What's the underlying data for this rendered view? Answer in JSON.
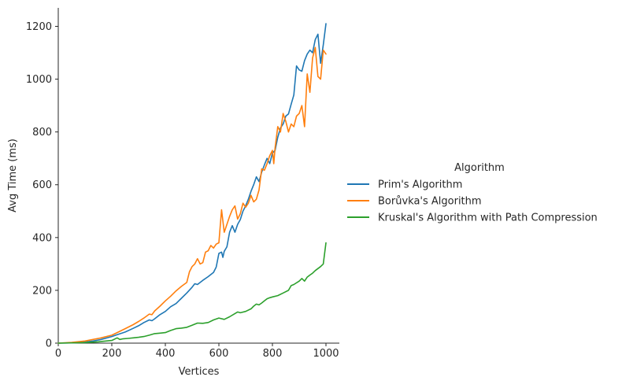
{
  "chart_data": {
    "type": "line",
    "xlabel": "Vertices",
    "ylabel": "Avg Time (ms)",
    "xlim": [
      0,
      1050
    ],
    "ylim": [
      0,
      1270
    ],
    "xticks": [
      0,
      200,
      400,
      600,
      800,
      1000
    ],
    "yticks": [
      0,
      200,
      400,
      600,
      800,
      1000,
      1200
    ],
    "grid": false,
    "legend": {
      "title": "Algorithm",
      "placement": "right-outside"
    },
    "series": [
      {
        "name": "Prim's Algorithm",
        "color": "#1f77b4",
        "points": [
          [
            0,
            0
          ],
          [
            50,
            1
          ],
          [
            100,
            4
          ],
          [
            130,
            8
          ],
          [
            160,
            14
          ],
          [
            200,
            25
          ],
          [
            220,
            32
          ],
          [
            250,
            42
          ],
          [
            280,
            56
          ],
          [
            300,
            66
          ],
          [
            320,
            78
          ],
          [
            340,
            88
          ],
          [
            350,
            85
          ],
          [
            360,
            92
          ],
          [
            380,
            108
          ],
          [
            400,
            120
          ],
          [
            420,
            138
          ],
          [
            440,
            150
          ],
          [
            460,
            170
          ],
          [
            480,
            190
          ],
          [
            500,
            212
          ],
          [
            510,
            225
          ],
          [
            520,
            222
          ],
          [
            540,
            238
          ],
          [
            560,
            252
          ],
          [
            580,
            268
          ],
          [
            590,
            288
          ],
          [
            600,
            340
          ],
          [
            610,
            345
          ],
          [
            615,
            325
          ],
          [
            620,
            348
          ],
          [
            630,
            365
          ],
          [
            640,
            420
          ],
          [
            650,
            445
          ],
          [
            660,
            420
          ],
          [
            670,
            450
          ],
          [
            680,
            468
          ],
          [
            690,
            500
          ],
          [
            700,
            520
          ],
          [
            710,
            545
          ],
          [
            720,
            575
          ],
          [
            730,
            600
          ],
          [
            740,
            630
          ],
          [
            750,
            612
          ],
          [
            760,
            648
          ],
          [
            770,
            675
          ],
          [
            780,
            700
          ],
          [
            790,
            680
          ],
          [
            800,
            720
          ],
          [
            810,
            730
          ],
          [
            820,
            780
          ],
          [
            830,
            815
          ],
          [
            840,
            830
          ],
          [
            850,
            860
          ],
          [
            860,
            868
          ],
          [
            870,
            905
          ],
          [
            880,
            940
          ],
          [
            890,
            1050
          ],
          [
            900,
            1035
          ],
          [
            910,
            1030
          ],
          [
            920,
            1070
          ],
          [
            930,
            1095
          ],
          [
            940,
            1110
          ],
          [
            950,
            1100
          ],
          [
            960,
            1150
          ],
          [
            970,
            1170
          ],
          [
            980,
            1060
          ],
          [
            990,
            1130
          ],
          [
            1000,
            1210
          ]
        ]
      },
      {
        "name": "Borůvka's Algorithm",
        "color": "#ff7f0e",
        "points": [
          [
            0,
            0
          ],
          [
            50,
            3
          ],
          [
            100,
            8
          ],
          [
            130,
            14
          ],
          [
            160,
            20
          ],
          [
            200,
            30
          ],
          [
            220,
            40
          ],
          [
            250,
            55
          ],
          [
            280,
            70
          ],
          [
            300,
            82
          ],
          [
            320,
            95
          ],
          [
            340,
            110
          ],
          [
            350,
            108
          ],
          [
            360,
            122
          ],
          [
            380,
            140
          ],
          [
            400,
            160
          ],
          [
            420,
            178
          ],
          [
            440,
            198
          ],
          [
            460,
            215
          ],
          [
            480,
            230
          ],
          [
            490,
            270
          ],
          [
            500,
            290
          ],
          [
            510,
            300
          ],
          [
            520,
            320
          ],
          [
            530,
            300
          ],
          [
            540,
            305
          ],
          [
            550,
            345
          ],
          [
            560,
            350
          ],
          [
            570,
            370
          ],
          [
            580,
            360
          ],
          [
            590,
            375
          ],
          [
            600,
            380
          ],
          [
            610,
            505
          ],
          [
            620,
            420
          ],
          [
            630,
            450
          ],
          [
            640,
            480
          ],
          [
            650,
            505
          ],
          [
            660,
            520
          ],
          [
            670,
            470
          ],
          [
            680,
            490
          ],
          [
            690,
            530
          ],
          [
            700,
            515
          ],
          [
            710,
            530
          ],
          [
            720,
            560
          ],
          [
            730,
            535
          ],
          [
            740,
            545
          ],
          [
            750,
            580
          ],
          [
            760,
            660
          ],
          [
            770,
            655
          ],
          [
            780,
            680
          ],
          [
            790,
            710
          ],
          [
            800,
            730
          ],
          [
            805,
            680
          ],
          [
            810,
            740
          ],
          [
            820,
            820
          ],
          [
            830,
            800
          ],
          [
            840,
            870
          ],
          [
            850,
            840
          ],
          [
            860,
            800
          ],
          [
            870,
            830
          ],
          [
            880,
            820
          ],
          [
            890,
            860
          ],
          [
            900,
            870
          ],
          [
            910,
            900
          ],
          [
            920,
            820
          ],
          [
            930,
            1020
          ],
          [
            940,
            950
          ],
          [
            950,
            1080
          ],
          [
            960,
            1120
          ],
          [
            970,
            1010
          ],
          [
            980,
            1000
          ],
          [
            990,
            1110
          ],
          [
            1000,
            1095
          ]
        ]
      },
      {
        "name": "Kruskal's Algorithm with Path Compression",
        "color": "#2ca02c",
        "points": [
          [
            0,
            0
          ],
          [
            100,
            2
          ],
          [
            150,
            5
          ],
          [
            200,
            10
          ],
          [
            220,
            20
          ],
          [
            230,
            14
          ],
          [
            240,
            16
          ],
          [
            260,
            18
          ],
          [
            280,
            20
          ],
          [
            300,
            22
          ],
          [
            320,
            25
          ],
          [
            340,
            30
          ],
          [
            360,
            36
          ],
          [
            380,
            38
          ],
          [
            400,
            40
          ],
          [
            420,
            48
          ],
          [
            440,
            55
          ],
          [
            460,
            57
          ],
          [
            480,
            60
          ],
          [
            500,
            68
          ],
          [
            520,
            76
          ],
          [
            540,
            75
          ],
          [
            560,
            78
          ],
          [
            580,
            88
          ],
          [
            600,
            95
          ],
          [
            620,
            90
          ],
          [
            640,
            100
          ],
          [
            660,
            112
          ],
          [
            670,
            118
          ],
          [
            680,
            115
          ],
          [
            700,
            120
          ],
          [
            720,
            130
          ],
          [
            730,
            140
          ],
          [
            740,
            148
          ],
          [
            750,
            145
          ],
          [
            760,
            152
          ],
          [
            770,
            160
          ],
          [
            780,
            168
          ],
          [
            790,
            172
          ],
          [
            800,
            175
          ],
          [
            820,
            180
          ],
          [
            840,
            190
          ],
          [
            860,
            200
          ],
          [
            870,
            218
          ],
          [
            880,
            222
          ],
          [
            900,
            235
          ],
          [
            910,
            245
          ],
          [
            920,
            235
          ],
          [
            930,
            250
          ],
          [
            940,
            258
          ],
          [
            950,
            265
          ],
          [
            960,
            275
          ],
          [
            980,
            290
          ],
          [
            990,
            300
          ],
          [
            1000,
            380
          ]
        ]
      }
    ]
  }
}
